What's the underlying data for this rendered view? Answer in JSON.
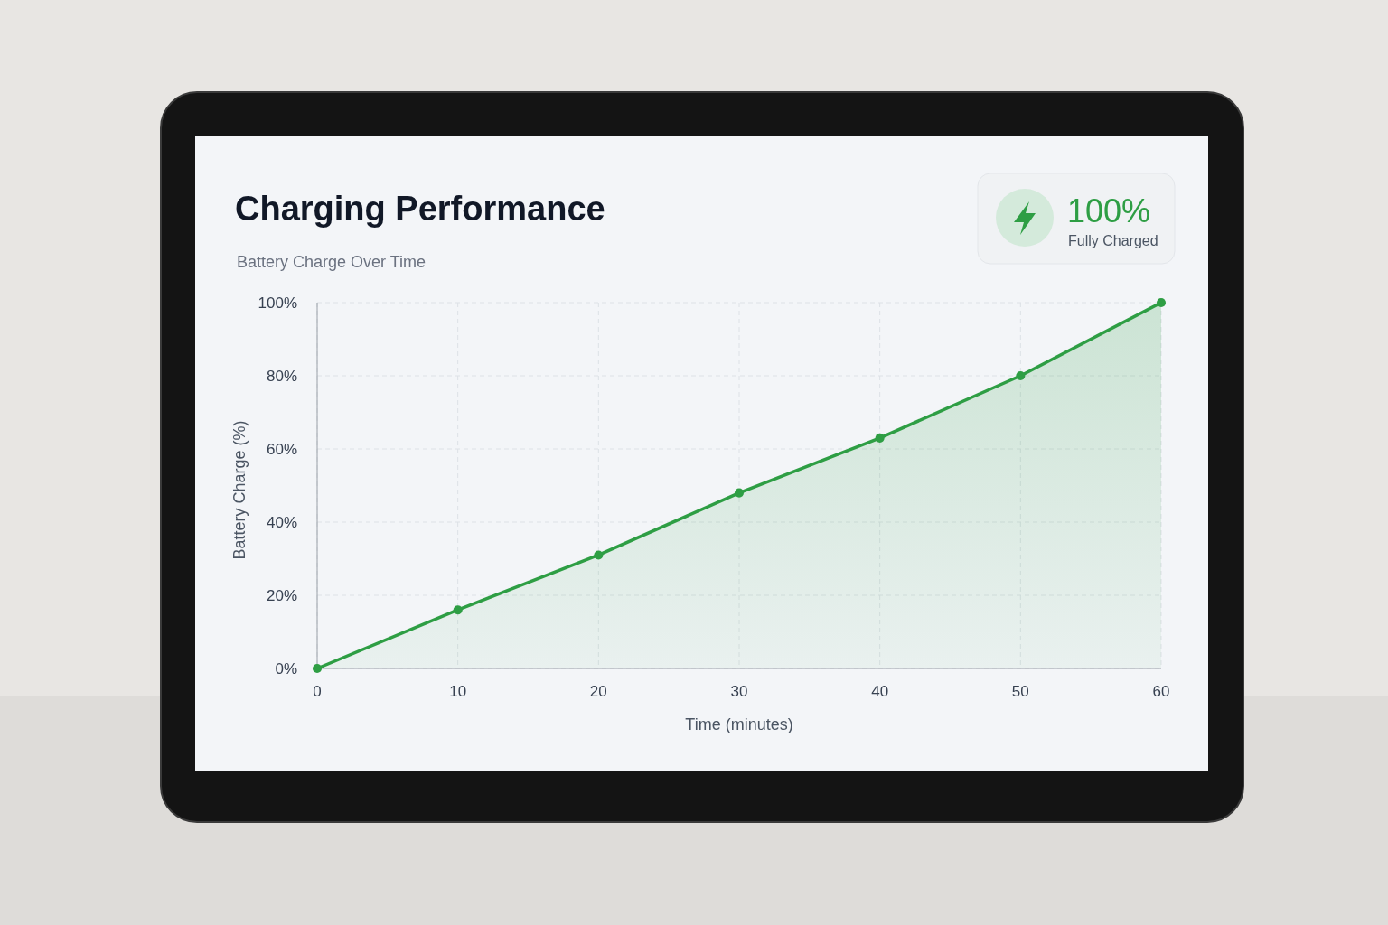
{
  "chart_data": {
    "type": "area",
    "title": "Charging Performance",
    "subtitle": "Battery Charge Over Time",
    "xlabel": "Time (minutes)",
    "ylabel": "Battery Charge (%)",
    "annotations": [
      "100%",
      "Fully Charged"
    ],
    "x": [
      0,
      10,
      20,
      30,
      40,
      50,
      60
    ],
    "series": [
      {
        "color": "#2e9e44",
        "values": [
          0,
          16,
          31,
          48,
          63,
          80,
          100
        ]
      }
    ],
    "xlim": [
      0,
      60
    ],
    "ylim": [
      0,
      100
    ],
    "xticks": [
      0,
      10,
      20,
      30,
      40,
      50,
      60
    ],
    "yticks": [
      {
        "value": 0,
        "label": "0%"
      },
      {
        "value": 20,
        "label": "20%"
      },
      {
        "value": 40,
        "label": "40%"
      },
      {
        "value": 60,
        "label": "60%"
      },
      {
        "value": 80,
        "label": "80%"
      },
      {
        "value": 100,
        "label": "100%"
      }
    ],
    "grid": true,
    "marker": "circle",
    "line_style": "solid"
  }
}
